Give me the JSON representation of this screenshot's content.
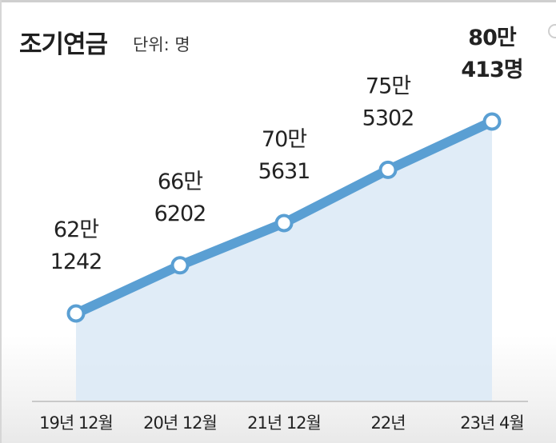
{
  "title": "조기연금",
  "unit_label": "단위: 명",
  "colors": {
    "line": "#5a9fd3",
    "area": "#dbe9f6",
    "text": "#222222"
  },
  "chart_data": {
    "type": "area",
    "categories": [
      "19년 12월",
      "20년 12월",
      "21년 12월",
      "22년",
      "23년 4월"
    ],
    "series": [
      {
        "values": [
          621242,
          666202,
          705631,
          755302,
          800413
        ]
      }
    ],
    "value_labels": [
      [
        "62만",
        "1242"
      ],
      [
        "66만",
        "6202"
      ],
      [
        "70만",
        "5631"
      ],
      [
        "75만",
        "5302"
      ],
      [
        "80만",
        "413명"
      ]
    ],
    "highlight_last": true,
    "xlabel": "",
    "ylabel": "",
    "grid": false
  }
}
